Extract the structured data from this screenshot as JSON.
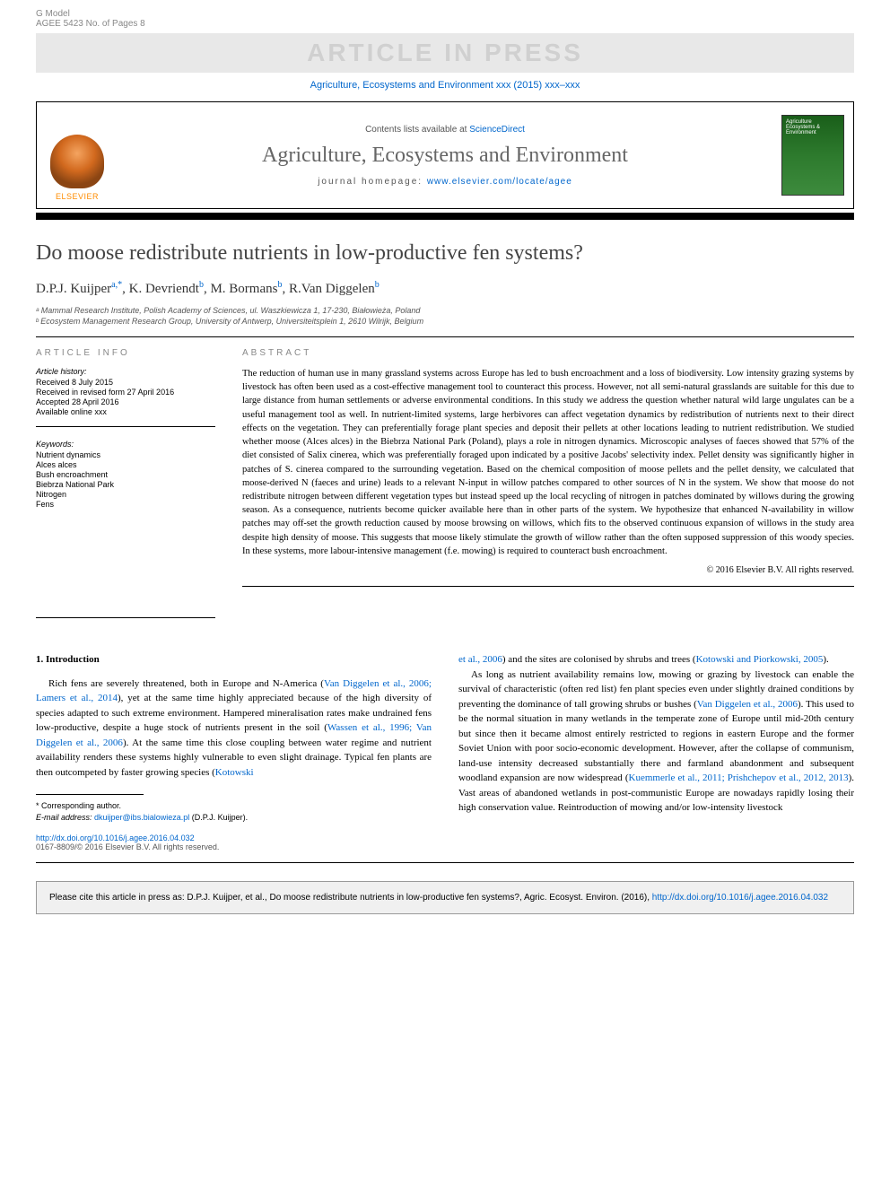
{
  "header": {
    "gmodel": "G Model",
    "modelref": "AGEE 5423 No. of Pages 8",
    "watermark": "ARTICLE IN PRESS",
    "journalref": "Agriculture, Ecosystems and Environment xxx (2015) xxx–xxx",
    "contentsPrefix": "Contents lists available at ",
    "contentsLink": "ScienceDirect",
    "journalName": "Agriculture, Ecosystems and Environment",
    "homepagePrefix": "journal homepage: ",
    "homepageLink": "www.elsevier.com/locate/agee",
    "elsevier": "ELSEVIER",
    "coverText": "Agriculture Ecosystems & Environment"
  },
  "article": {
    "title": "Do moose redistribute nutrients in low-productive fen systems?",
    "authorsHtml": "D.P.J. Kuijper<sup>a,*</sup>, K. Devriendt<sup>b</sup>, M. Bormans<sup>b</sup>, R.Van Diggelen<sup>b</sup>",
    "affilA": "ᵃ Mammal Research Institute, Polish Academy of Sciences, ul. Waszkiewicza 1, 17-230, Białowieża, Poland",
    "affilB": "ᵇ Ecosystem Management Research Group, University of Antwerp, Universiteitsplein 1, 2610 Wilrijk, Belgium"
  },
  "info": {
    "heading": "ARTICLE INFO",
    "historyTitle": "Article history:",
    "received": "Received 8 July 2015",
    "revised": "Received in revised form 27 April 2016",
    "accepted": "Accepted 28 April 2016",
    "online": "Available online xxx",
    "keywordsTitle": "Keywords:",
    "kw1": "Nutrient dynamics",
    "kw2": "Alces alces",
    "kw3": "Bush encroachment",
    "kw4": "Biebrza National Park",
    "kw5": "Nitrogen",
    "kw6": "Fens"
  },
  "abstract": {
    "heading": "ABSTRACT",
    "text": "The reduction of human use in many grassland systems across Europe has led to bush encroachment and a loss of biodiversity. Low intensity grazing systems by livestock has often been used as a cost-effective management tool to counteract this process. However, not all semi-natural grasslands are suitable for this due to large distance from human settlements or adverse environmental conditions. In this study we address the question whether natural wild large ungulates can be a useful management tool as well. In nutrient-limited systems, large herbivores can affect vegetation dynamics by redistribution of nutrients next to their direct effects on the vegetation. They can preferentially forage plant species and deposit their pellets at other locations leading to nutrient redistribution. We studied whether moose (Alces alces) in the Biebrza National Park (Poland), plays a role in nitrogen dynamics. Microscopic analyses of faeces showed that 57% of the diet consisted of Salix cinerea, which was preferentially foraged upon indicated by a positive Jacobs' selectivity index. Pellet density was significantly higher in patches of S. cinerea compared to the surrounding vegetation. Based on the chemical composition of moose pellets and the pellet density, we calculated that moose-derived N (faeces and urine) leads to a relevant N-input in willow patches compared to other sources of N in the system. We show that moose do not redistribute nitrogen between different vegetation types but instead speed up the local recycling of nitrogen in patches dominated by willows during the growing season. As a consequence, nutrients become quicker available here than in other parts of the system. We hypothesize that enhanced N-availability in willow patches may off-set the growth reduction caused by moose browsing on willows, which fits to the observed continuous expansion of willows in the study area despite high density of moose. This suggests that moose likely stimulate the growth of willow rather than the often supposed suppression of this woody species. In these systems, more labour-intensive management (f.e. mowing) is required to counteract bush encroachment.",
    "copyright": "© 2016 Elsevier B.V. All rights reserved."
  },
  "body": {
    "introHeading": "1. Introduction",
    "col1p1a": "Rich fens are severely threatened, both in Europe and N-America (",
    "col1cite1": "Van Diggelen et al., 2006; Lamers et al., 2014",
    "col1p1b": "), yet at the same time highly appreciated because of the high diversity of species adapted to such extreme environment. Hampered mineralisation rates make undrained fens low-productive, despite a huge stock of nutrients present in the soil (",
    "col1cite2": "Wassen et al., 1996; Van Diggelen et al., 2006",
    "col1p1c": "). At the same time this close coupling between water regime and nutrient availability renders these systems highly vulnerable to even slight drainage. Typical fen plants are then outcompeted by faster growing species (",
    "col1cite3": "Kotowski",
    "col2p1a": "et al., 2006",
    "col2p1b": ") and the sites are colonised by shrubs and trees (",
    "col2cite1": "Kotowski and Piorkowski, 2005",
    "col2p1c": ").",
    "col2p2a": "As long as nutrient availability remains low, mowing or grazing by livestock can enable the survival of characteristic (often red list) fen plant species even under slightly drained conditions by preventing the dominance of tall growing shrubs or bushes (",
    "col2cite2": "Van Diggelen et al., 2006",
    "col2p2b": "). This used to be the normal situation in many wetlands in the temperate zone of Europe until mid-20th century but since then it became almost entirely restricted to regions in eastern Europe and the former Soviet Union with poor socio-economic development. However, after the collapse of communism, land-use intensity decreased substantially there and farmland abandonment and subsequent woodland expansion are now widespread (",
    "col2cite3": "Kuemmerle et al., 2011; Prishchepov et al., 2012, 2013",
    "col2p2c": "). Vast areas of abandoned wetlands in post-communistic Europe are nowadays rapidly losing their high conservation value. Reintroduction of mowing and/or low-intensity livestock"
  },
  "footnote": {
    "corr": "* Corresponding author.",
    "emailLabel": "E-mail address: ",
    "email": "dkuijper@ibs.bialowieza.pl",
    "emailSuffix": " (D.P.J. Kuijper)."
  },
  "doi": {
    "link": "http://dx.doi.org/10.1016/j.agee.2016.04.032",
    "copyright": "0167-8809/© 2016 Elsevier B.V. All rights reserved."
  },
  "citebox": {
    "text": "Please cite this article in press as: D.P.J. Kuijper, et al., Do moose redistribute nutrients in low-productive fen systems?, Agric. Ecosyst. Environ. (2016), ",
    "link": "http://dx.doi.org/10.1016/j.agee.2016.04.032"
  },
  "colors": {
    "link": "#0066cc",
    "watermarkBg": "#e8e8e8",
    "watermarkText": "#d0d0d0",
    "citeboxBg": "#f0f0f0",
    "coverGreen": "#2d7a2d",
    "elsevierOrange": "#ff8c00"
  }
}
